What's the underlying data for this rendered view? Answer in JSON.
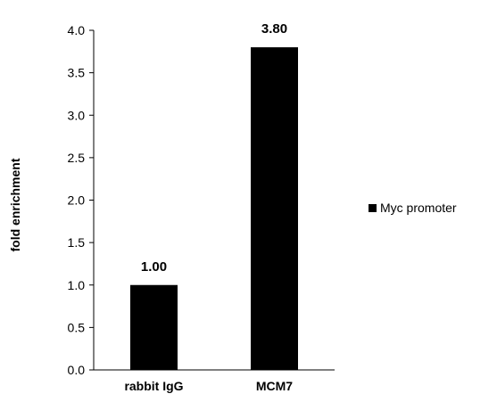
{
  "chart_data": {
    "type": "bar",
    "title": "",
    "xlabel": "",
    "ylabel": "fold enrichment",
    "categories": [
      "rabbit IgG",
      "MCM7"
    ],
    "series": [
      {
        "name": "Myc promoter",
        "values": [
          1.0,
          3.8
        ]
      }
    ],
    "data_labels": [
      "1.00",
      "3.80"
    ],
    "ylim": [
      0,
      4.0
    ],
    "yticks": [
      "0.0",
      "0.5",
      "1.0",
      "1.5",
      "2.0",
      "2.5",
      "3.0",
      "3.5",
      "4.0"
    ],
    "grid": false,
    "legend_position": "right",
    "bar_color": "#000000"
  }
}
